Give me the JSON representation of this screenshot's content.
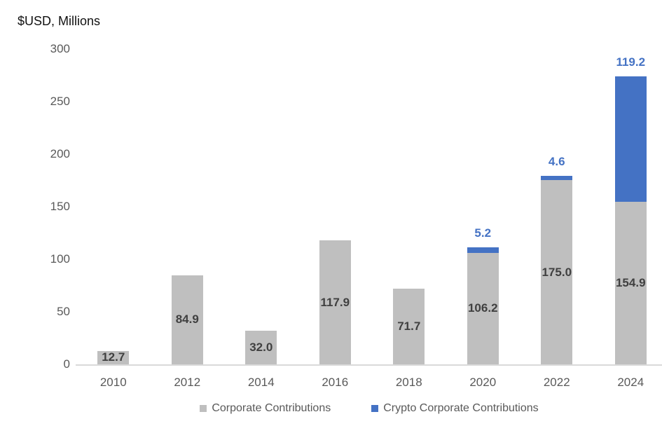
{
  "title": "$USD, Millions",
  "colors": {
    "corporate": "#bfbfbf",
    "crypto": "#4472c4",
    "axis_line": "#d9d9d9",
    "tick_text": "#595959",
    "corporate_label_text": "#404040",
    "crypto_label_text": "#4472c4",
    "legend_text": "#595959"
  },
  "chart_data": {
    "type": "bar",
    "stacked": true,
    "title": "$USD, Millions",
    "categories": [
      "2010",
      "2012",
      "2014",
      "2016",
      "2018",
      "2020",
      "2022",
      "2024"
    ],
    "series": [
      {
        "name": "Corporate Contributions",
        "color": "#bfbfbf",
        "values": [
          12.7,
          84.9,
          32.0,
          117.9,
          71.7,
          106.2,
          175.0,
          154.9
        ],
        "labels": [
          "12.7",
          "84.9",
          "32.0",
          "117.9",
          "71.7",
          "106.2",
          "175.0",
          "154.9"
        ],
        "label_position": "inside-center"
      },
      {
        "name": "Crypto Corporate Contributions",
        "color": "#4472c4",
        "values": [
          0,
          0,
          0,
          0,
          0,
          5.2,
          4.6,
          119.2
        ],
        "labels": [
          "",
          "",
          "",
          "",
          "",
          "5.2",
          "4.6",
          "119.2"
        ],
        "label_position": "outside-end"
      }
    ],
    "xlabel": "",
    "ylabel": "$USD, Millions",
    "ylim": [
      0,
      300
    ],
    "yticks": [
      0,
      50,
      100,
      150,
      200,
      250,
      300
    ],
    "grid": false,
    "legend_position": "bottom"
  },
  "legend": {
    "items": [
      {
        "label": "Corporate Contributions",
        "color": "#bfbfbf"
      },
      {
        "label": "Crypto Corporate Contributions",
        "color": "#4472c4"
      }
    ]
  }
}
